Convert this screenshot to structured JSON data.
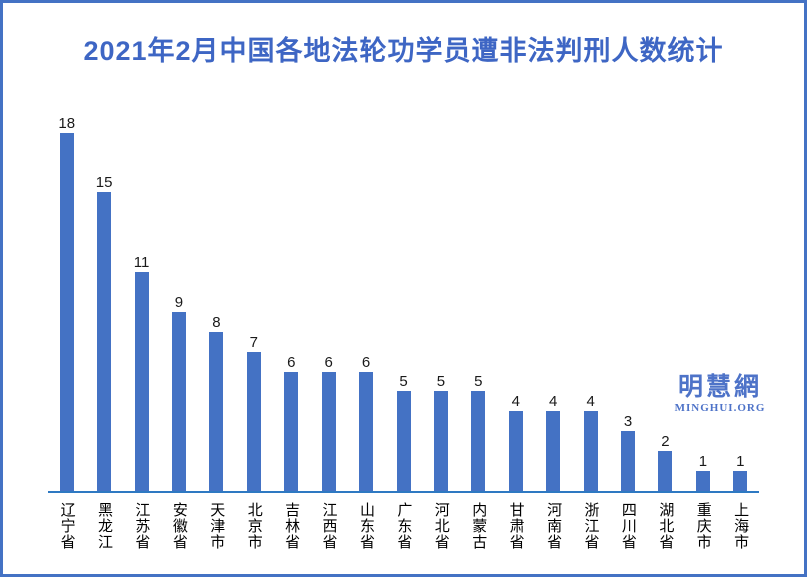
{
  "page": {
    "background": "#ffffff",
    "frame_border_color": "#4472C4"
  },
  "chart_data": {
    "type": "bar",
    "title": "2021年2月中国各地法轮功学员遭非法判刑人数统计",
    "title_color": "#3E66C4",
    "categories": [
      "辽宁省",
      "黑龙江",
      "江苏省",
      "安徽省",
      "天津市",
      "北京市",
      "吉林省",
      "江西省",
      "山东省",
      "广东省",
      "河北省",
      "内蒙古",
      "甘肃省",
      "河南省",
      "浙江省",
      "四川省",
      "湖北省",
      "重庆市",
      "上海市"
    ],
    "values": [
      18,
      15,
      11,
      9,
      8,
      7,
      6,
      6,
      6,
      5,
      5,
      5,
      4,
      4,
      4,
      3,
      2,
      1,
      1
    ],
    "bar_color": "#4472C4",
    "axis_line_color": "#2E79C2",
    "value_label_color": "#1a1a1a",
    "ylim": [
      0,
      18
    ],
    "grid": false,
    "legend": false,
    "data_labels": true,
    "x_label_orientation": "vertical-upright",
    "y_axis": "hidden"
  },
  "logo": {
    "line1": "明慧網",
    "line2": "MINGHUI.ORG",
    "color": "#4E73C8"
  }
}
